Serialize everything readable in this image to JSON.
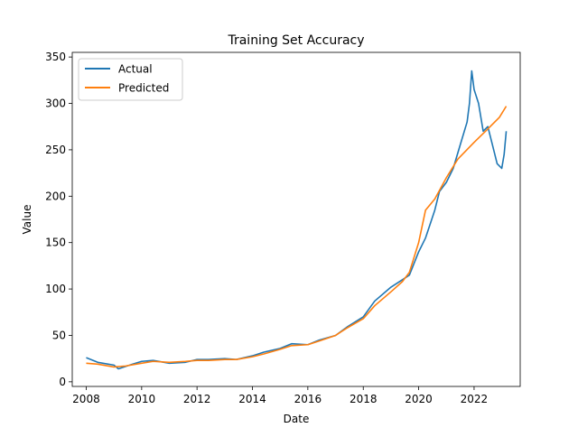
{
  "chart_data": {
    "type": "line",
    "title": "Training Set Accuracy",
    "xlabel": "Date",
    "ylabel": "Value",
    "xlim": [
      "2007-07-01",
      "2023-09-01"
    ],
    "ylim": [
      -5,
      355
    ],
    "x_ticks": [
      "2008",
      "2010",
      "2012",
      "2014",
      "2016",
      "2018",
      "2020",
      "2022"
    ],
    "y_ticks": [
      "0",
      "50",
      "100",
      "150",
      "200",
      "250",
      "300",
      "350"
    ],
    "grid": false,
    "legend": {
      "position": "top-left",
      "entries": [
        "Actual",
        "Predicted"
      ]
    },
    "series": [
      {
        "name": "Actual",
        "color": "#1f77b4",
        "x": [
          "2008-01-01",
          "2008-06-01",
          "2009-01-01",
          "2009-03-01",
          "2009-09-01",
          "2010-01-01",
          "2010-06-01",
          "2011-01-01",
          "2011-08-01",
          "2012-01-01",
          "2012-06-01",
          "2013-01-01",
          "2013-06-01",
          "2014-01-01",
          "2014-06-01",
          "2015-01-01",
          "2015-06-01",
          "2016-01-01",
          "2016-06-01",
          "2017-01-01",
          "2017-06-01",
          "2018-01-01",
          "2018-06-01",
          "2019-01-01",
          "2019-06-01",
          "2019-09-01",
          "2020-01-01",
          "2020-04-01",
          "2020-08-01",
          "2020-10-01",
          "2021-01-01",
          "2021-04-01",
          "2021-07-01",
          "2021-10-01",
          "2021-11-01",
          "2021-12-01",
          "2022-01-01",
          "2022-03-01",
          "2022-05-01",
          "2022-07-01",
          "2022-09-01",
          "2022-11-01",
          "2023-01-01",
          "2023-02-01",
          "2023-03-01"
        ],
        "values": [
          26,
          21,
          18,
          14,
          19,
          22,
          23,
          20,
          21,
          24,
          24,
          25,
          24,
          28,
          32,
          36,
          41,
          40,
          45,
          50,
          59,
          70,
          87,
          102,
          110,
          115,
          140,
          155,
          185,
          205,
          215,
          230,
          255,
          280,
          300,
          335,
          315,
          300,
          270,
          275,
          255,
          235,
          230,
          245,
          270
        ]
      },
      {
        "name": "Predicted",
        "color": "#ff7f0e",
        "x": [
          "2008-01-01",
          "2008-06-01",
          "2009-01-01",
          "2009-06-01",
          "2010-01-01",
          "2010-06-01",
          "2011-01-01",
          "2011-08-01",
          "2012-01-01",
          "2012-06-01",
          "2013-01-01",
          "2013-06-01",
          "2014-01-01",
          "2014-06-01",
          "2015-01-01",
          "2015-06-01",
          "2016-01-01",
          "2016-06-01",
          "2017-01-01",
          "2017-06-01",
          "2018-01-01",
          "2018-06-01",
          "2019-01-01",
          "2019-06-01",
          "2019-09-01",
          "2020-01-01",
          "2020-04-01",
          "2020-08-01",
          "2021-01-01",
          "2021-06-01",
          "2022-01-01",
          "2022-06-01",
          "2022-12-01",
          "2023-03-01"
        ],
        "values": [
          20,
          19,
          16,
          17,
          20,
          22,
          21,
          22,
          23,
          23,
          24,
          24,
          27,
          30,
          35,
          39,
          40,
          44,
          50,
          58,
          68,
          82,
          97,
          108,
          118,
          150,
          185,
          197,
          220,
          240,
          258,
          270,
          285,
          297
        ]
      }
    ]
  }
}
